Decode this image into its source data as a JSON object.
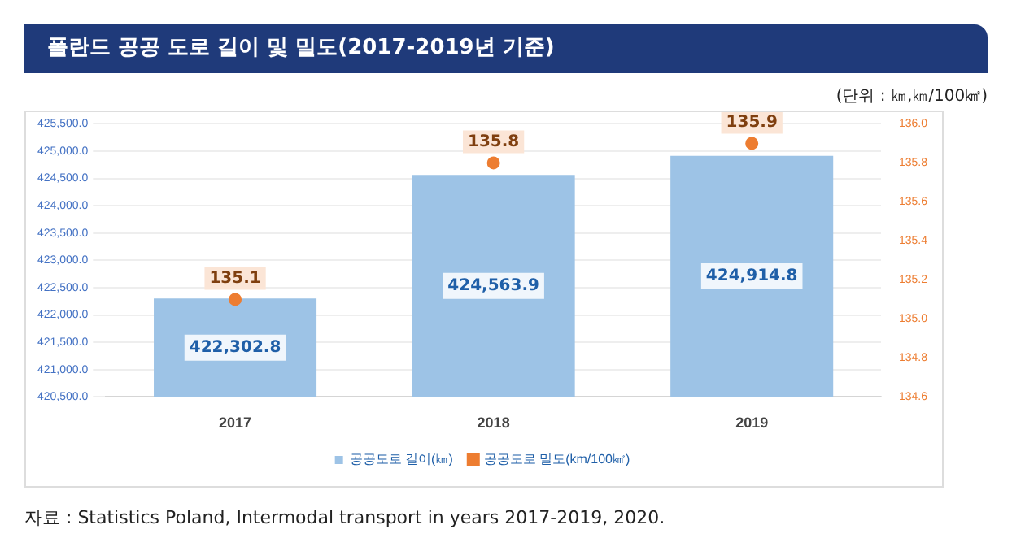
{
  "chart_data": {
    "type": "bar",
    "title": "폴란드 공공 도로 길이 및 밀도(2017-2019년 기준)",
    "subtitle": "(단위 : ㎞,㎞/100㎢)",
    "categories": [
      "2017",
      "2018",
      "2019"
    ],
    "series": [
      {
        "name": "공공도로 길이(㎞)",
        "color": "#9dc3e6",
        "values": [
          422302.8,
          424563.9,
          424914.8
        ],
        "value_labels": [
          "422,302.8",
          "424,563.9",
          "424,914.8"
        ]
      },
      {
        "name": "공공도로 밀도(km/100㎢)",
        "type": "scatter",
        "axis": "y2",
        "color": "#ed7d31",
        "values": [
          135.1,
          135.8,
          135.9
        ]
      }
    ],
    "ylim": [
      420500,
      425500
    ],
    "yticks": [
      {
        "value": 420500,
        "label": "420,500.0"
      },
      {
        "value": 421000,
        "label": "421,000.0"
      },
      {
        "value": 421500,
        "label": "421,500.0"
      },
      {
        "value": 422000,
        "label": "422,000.0"
      },
      {
        "value": 422500,
        "label": "422,500.0"
      },
      {
        "value": 423000,
        "label": "423,000.0"
      },
      {
        "value": 423500,
        "label": "423,500.0"
      },
      {
        "value": 424000,
        "label": "424,000.0"
      },
      {
        "value": 424500,
        "label": "424,500.0"
      },
      {
        "value": 425000,
        "label": "425,000.0"
      },
      {
        "value": 425500,
        "label": "425,500.0"
      }
    ],
    "y2lim": [
      134.6,
      136.0
    ],
    "y2ticks": [
      134.6,
      134.8,
      {
        "value": 135.0,
        "label": "135.0"
      },
      135.2,
      135.4,
      135.6,
      135.8,
      {
        "value": 136.0,
        "label": "136.0"
      }
    ],
    "grid": "y",
    "legend": "bottom",
    "marker": "circle",
    "data_labels": true,
    "annotations": [
      "자료 : Statistics Poland, Intermodal transport in years 2017-2019, 2020."
    ]
  }
}
